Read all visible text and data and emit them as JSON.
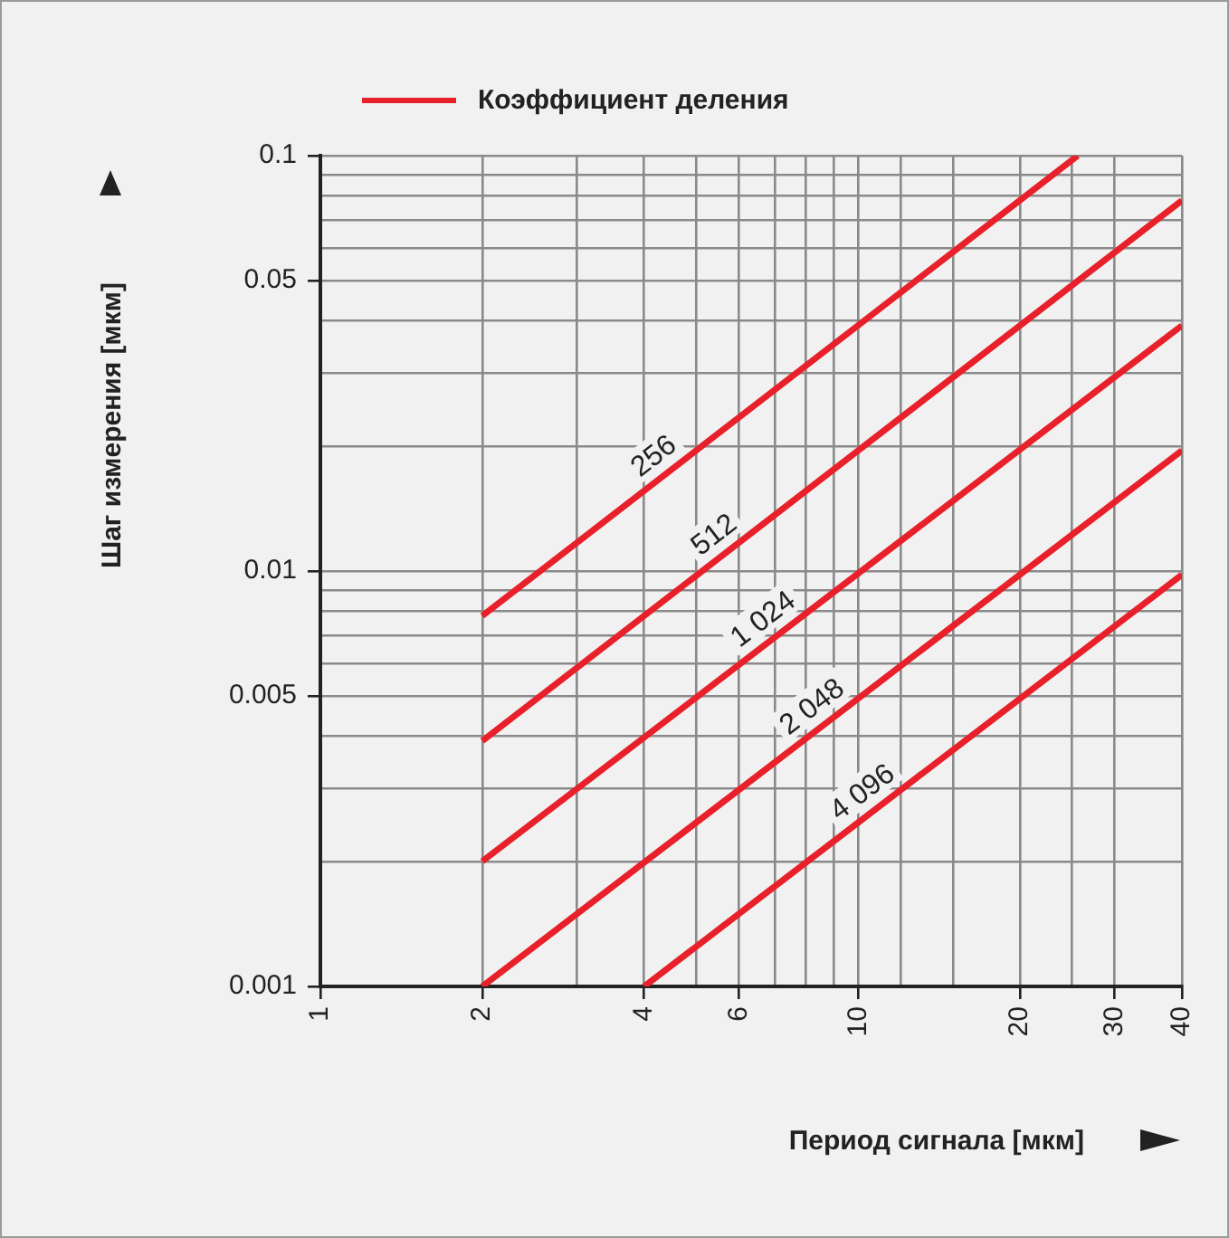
{
  "chart_data": {
    "type": "line",
    "xlabel": "Период сигнала [мкм]",
    "ylabel": "Шаг измерения [мкм]",
    "legend_title": "Коэффициент деления",
    "log": "xy",
    "grid": true,
    "marker": "none",
    "line_style": "solid",
    "xlim": [
      1,
      40
    ],
    "ylim": [
      0.001,
      0.1
    ],
    "xticks": [
      1,
      2,
      {
        "value": 3,
        "label": null
      },
      4,
      {
        "value": 5,
        "label": null
      },
      6,
      {
        "value": 7,
        "label": null
      },
      {
        "value": 8,
        "label": null
      },
      {
        "value": 9,
        "label": null
      },
      10,
      {
        "value": 12,
        "label": null
      },
      {
        "value": 15,
        "label": null
      },
      20,
      {
        "value": 25,
        "label": null
      },
      30,
      40
    ],
    "yticks": [
      0.001,
      {
        "value": 0.002,
        "label": null
      },
      {
        "value": 0.003,
        "label": null
      },
      {
        "value": 0.004,
        "label": null
      },
      0.005,
      {
        "value": 0.006,
        "label": null
      },
      {
        "value": 0.007,
        "label": null
      },
      {
        "value": 0.008,
        "label": null
      },
      {
        "value": 0.009,
        "label": null
      },
      0.01,
      {
        "value": 0.02,
        "label": null
      },
      {
        "value": 0.03,
        "label": null
      },
      {
        "value": 0.04,
        "label": null
      },
      0.05,
      {
        "value": 0.06,
        "label": null
      },
      {
        "value": 0.07,
        "label": null
      },
      {
        "value": 0.08,
        "label": null
      },
      {
        "value": 0.09,
        "label": null
      },
      0.1
    ],
    "series": [
      {
        "name": "256",
        "color": "#e8202a",
        "x": [
          2,
          25.6
        ],
        "values": [
          0.0078,
          0.1
        ]
      },
      {
        "name": "512",
        "color": "#e8202a",
        "x": [
          2,
          40
        ],
        "values": [
          0.0039,
          0.078
        ]
      },
      {
        "name": "1 024",
        "color": "#e8202a",
        "x": [
          2,
          40
        ],
        "values": [
          0.002,
          0.039
        ]
      },
      {
        "name": "2 048",
        "color": "#e8202a",
        "x": [
          2,
          40
        ],
        "values": [
          0.001,
          0.0195
        ]
      },
      {
        "name": "4 096",
        "color": "#e8202a",
        "x": [
          4,
          40
        ],
        "values": [
          0.001,
          0.0098
        ]
      }
    ]
  }
}
